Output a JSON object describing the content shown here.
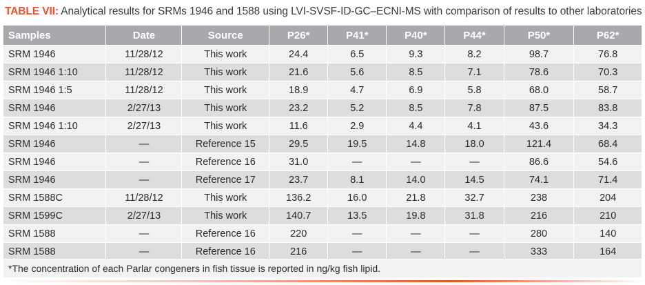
{
  "caption": {
    "tag": "TABLE VII:",
    "text": " Analytical results for SRMs 1946 and 1588 using LVI-SVSF-ID-GC–ECNI-MS with comparison of results to other laboratories"
  },
  "table": {
    "headers": [
      "Samples",
      "Date",
      "Source",
      "P26*",
      "P41*",
      "P40*",
      "P44*",
      "P50*",
      "P62*"
    ],
    "rows": [
      [
        "SRM 1946",
        "11/28/12",
        "This work",
        "24.4",
        "6.5",
        "9.3",
        "8.2",
        "98.7",
        "76.8"
      ],
      [
        "SRM 1946 1:10",
        "11/28/12",
        "This work",
        "21.6",
        "5.6",
        "8.5",
        "7.1",
        "78.6",
        "70.3"
      ],
      [
        "SRM 1946 1:5",
        "11/28/12",
        "This work",
        "18.9",
        "4.7",
        "6.9",
        "5.8",
        "68.0",
        "58.7"
      ],
      [
        "SRM 1946",
        "2/27/13",
        "This work",
        "23.2",
        "5.2",
        "8.5",
        "7.8",
        "87.5",
        "83.8"
      ],
      [
        "SRM 1946 1:10",
        "2/27/13",
        "This work",
        "11.6",
        "2.9",
        "4.4",
        "4.1",
        "43.6",
        "34.3"
      ],
      [
        "SRM 1946",
        "—",
        "Reference 15",
        "29.5",
        "19.5",
        "14.8",
        "18.0",
        "121.4",
        "68.4"
      ],
      [
        "SRM 1946",
        "—",
        "Reference 16",
        "31.0",
        "—",
        "—",
        "—",
        "86.6",
        "54.6"
      ],
      [
        "SRM 1946",
        "—",
        "Reference 17",
        "23.7",
        "8.1",
        "14.0",
        "14.5",
        "74.1",
        "71.4"
      ],
      [
        "SRM 1588C",
        "11/28/12",
        "This work",
        "136.2",
        "16.0",
        "21.8",
        "32.7",
        "238",
        "204"
      ],
      [
        "SRM 1599C",
        "2/27/13",
        "This work",
        "140.7",
        "13.5",
        "19.8",
        "31.8",
        "216",
        "210"
      ],
      [
        "SRM 1588",
        "—",
        "Reference 16",
        "220",
        "—",
        "—",
        "—",
        "280",
        "140"
      ],
      [
        "SRM 1588",
        "—",
        "Reference 16",
        "216",
        "—",
        "—",
        "—",
        "333",
        "164"
      ]
    ]
  },
  "footnote": "*The concentration of each Parlar congeners in fish tissue is reported in ng/kg fish lipid.",
  "colors": {
    "accent": "#e8532a",
    "header_bg": "#a7a9ac",
    "row_light": "#f2f2f2",
    "row_dark": "#dcdddf"
  }
}
